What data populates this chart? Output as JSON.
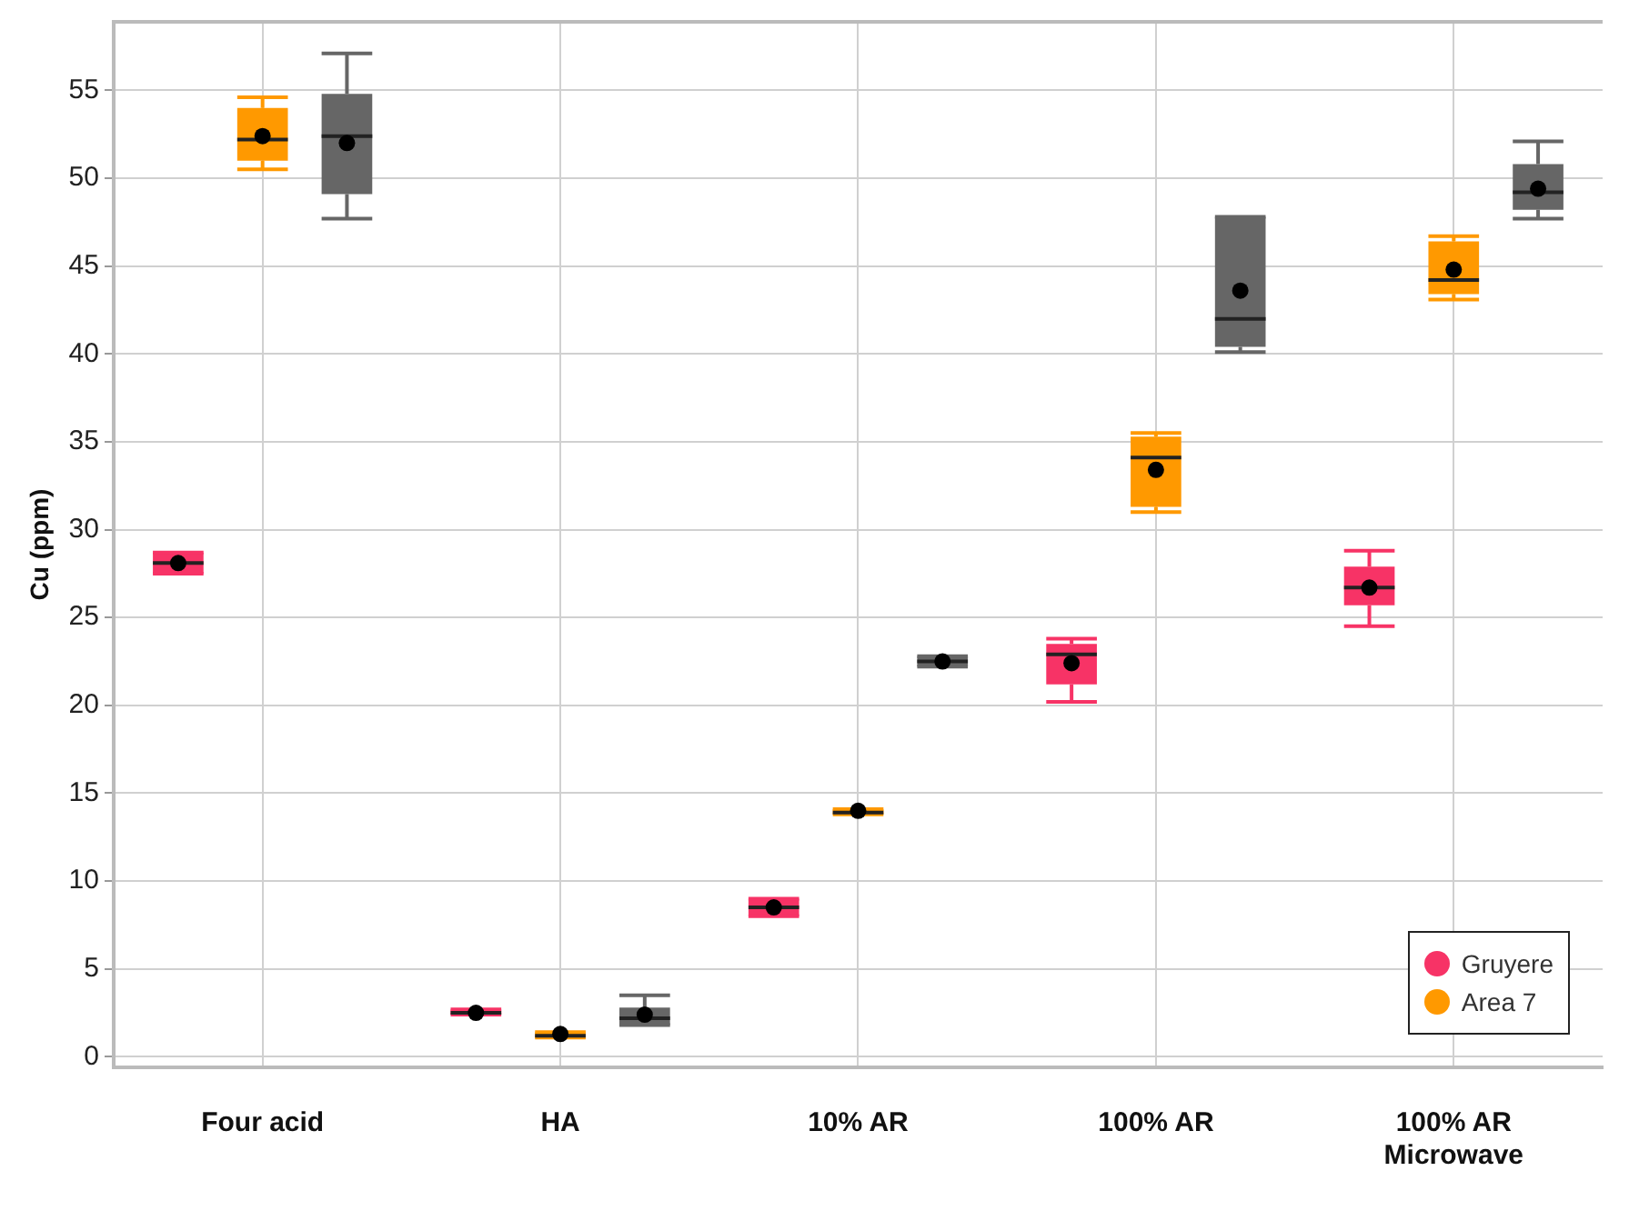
{
  "chart_data": {
    "type": "box",
    "ylabel": "Cu (ppm)",
    "categories": [
      "Four acid",
      "HA",
      "10% AR",
      "100% AR",
      "100% AR Microwave"
    ],
    "ylim": [
      -0.6,
      58.9
    ],
    "yticks": [
      0,
      5,
      10,
      15,
      20,
      25,
      30,
      35,
      40,
      45,
      50,
      55
    ],
    "grid": true,
    "legend": "bottom right",
    "series": [
      {
        "name": "Gruyere",
        "color": "#f73366",
        "boxes": [
          {
            "low": 27.5,
            "q1": 27.5,
            "median": 28.1,
            "q3": 28.7,
            "high": 28.7,
            "mean": 28.1
          },
          {
            "low": 2.4,
            "q1": 2.4,
            "median": 2.5,
            "q3": 2.7,
            "high": 2.7,
            "mean": 2.5
          },
          {
            "low": 8.0,
            "q1": 8.0,
            "median": 8.5,
            "q3": 9.0,
            "high": 9.0,
            "mean": 8.5
          },
          {
            "low": 20.2,
            "q1": 21.2,
            "median": 22.9,
            "q3": 23.5,
            "high": 23.8,
            "mean": 22.4
          },
          {
            "low": 24.5,
            "q1": 25.7,
            "median": 26.7,
            "q3": 27.9,
            "high": 28.8,
            "mean": 26.7
          }
        ]
      },
      {
        "name": "Area 7",
        "color": "#ff9900",
        "boxes": [
          {
            "low": 50.5,
            "q1": 51.0,
            "median": 52.2,
            "q3": 54.0,
            "high": 54.6,
            "mean": 52.4
          },
          {
            "low": 1.1,
            "q1": 1.1,
            "median": 1.2,
            "q3": 1.4,
            "high": 1.4,
            "mean": 1.3
          },
          {
            "low": 13.8,
            "q1": 13.8,
            "median": 13.9,
            "q3": 14.1,
            "high": 14.1,
            "mean": 14.0
          },
          {
            "low": 31.0,
            "q1": 31.3,
            "median": 34.1,
            "q3": 35.3,
            "high": 35.5,
            "mean": 33.4
          },
          {
            "low": 43.1,
            "q1": 43.4,
            "median": 44.2,
            "q3": 46.4,
            "high": 46.7,
            "mean": 44.8
          }
        ]
      },
      {
        "color": "#666666",
        "boxes": [
          {
            "low": 47.7,
            "q1": 49.1,
            "median": 52.4,
            "q3": 54.8,
            "high": 57.1,
            "mean": 52.0
          },
          {
            "low": 1.8,
            "q1": 1.8,
            "median": 2.2,
            "q3": 2.8,
            "high": 3.5,
            "mean": 2.4
          },
          {
            "low": 22.2,
            "q1": 22.2,
            "median": 22.5,
            "q3": 22.8,
            "high": 22.8,
            "mean": 22.5
          },
          {
            "low": 40.1,
            "q1": 40.4,
            "median": 42.0,
            "q3": 47.8,
            "high": 47.8,
            "mean": 43.6
          },
          {
            "low": 47.7,
            "q1": 48.2,
            "median": 49.2,
            "q3": 50.8,
            "high": 52.1,
            "mean": 49.4
          }
        ]
      }
    ]
  }
}
